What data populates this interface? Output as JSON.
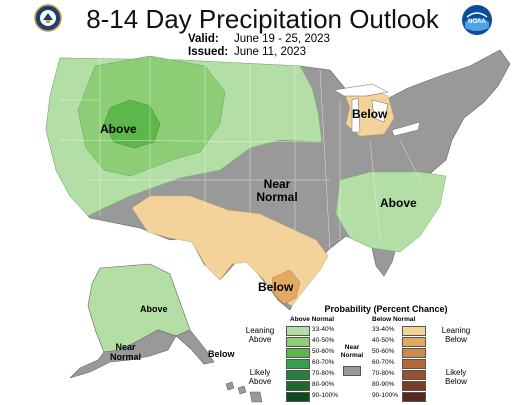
{
  "title": "8-14 Day Precipitation Outlook",
  "valid_label": "Valid:",
  "valid_value": "June 19 - 25, 2023",
  "issued_label": "Issued:",
  "issued_value": "June 11, 2023",
  "noaa_logo_text": "NOAA",
  "regions": {
    "above_west": "Above",
    "near_normal_center": [
      "Near",
      "Normal"
    ],
    "above_southeast": "Above",
    "below_michigan": "Below",
    "below_texas": "Below",
    "above_alaska": "Above",
    "near_normal_alaska": [
      "Near",
      "Normal"
    ],
    "below_alaska_panhandle": "Below"
  },
  "legend": {
    "title": "Probability (Percent Chance)",
    "above_header": "Above Normal",
    "below_header": "Below Normal",
    "near_header": [
      "Near",
      "Normal"
    ],
    "ranges": [
      "33-40%",
      "40-50%",
      "50-60%",
      "60-70%",
      "70-80%",
      "80-90%",
      "90-100%"
    ],
    "above_colors": [
      "#b3dea6",
      "#8ccd76",
      "#5db84b",
      "#35a14a",
      "#24803a",
      "#1a6a2b",
      "#0f4a1f"
    ],
    "below_colors": [
      "#f3d39a",
      "#e2a964",
      "#cd8a45",
      "#b4683a",
      "#97512d",
      "#7a3e26",
      "#56291a"
    ],
    "near_color": "#999999",
    "leaning_above": [
      "Leaning",
      "Above"
    ],
    "likely_above": [
      "Likely",
      "Above"
    ],
    "leaning_below": [
      "Leaning",
      "Below"
    ],
    "likely_below": [
      "Likely",
      "Below"
    ]
  },
  "colors": {
    "above_3340": "#b3dea6",
    "above_4050": "#8ccd76",
    "above_5060": "#5db84b",
    "below_3340": "#f3d39a",
    "below_4050": "#e2a964",
    "near": "#999999"
  }
}
